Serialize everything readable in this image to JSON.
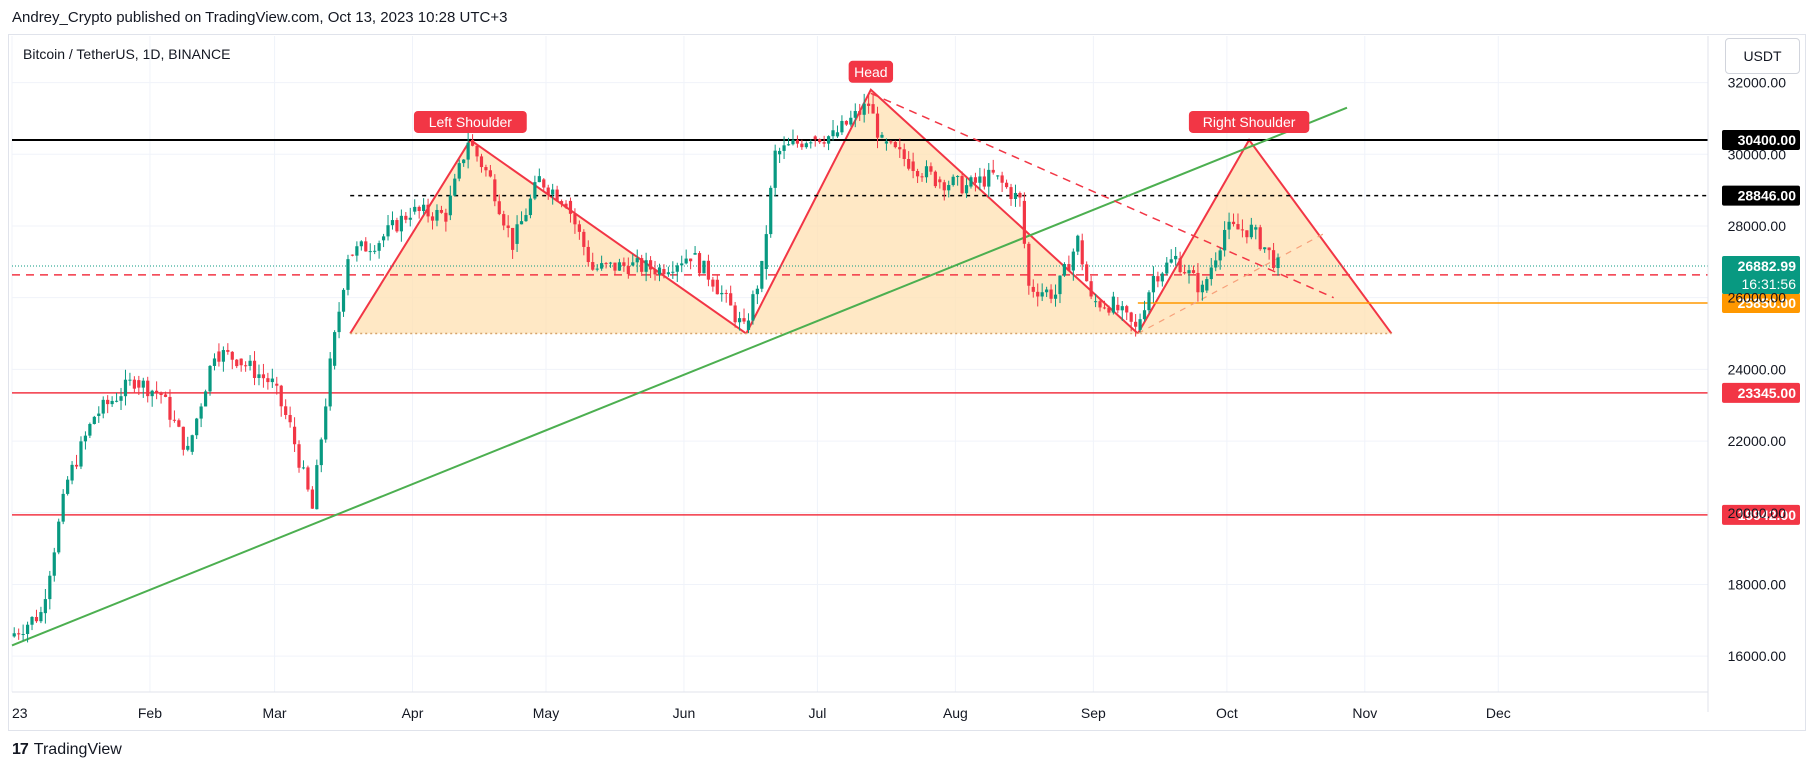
{
  "header": {
    "published": "Andrey_Crypto published on TradingView.com, Oct 13, 2023 10:28 UTC+3"
  },
  "symbol": {
    "label": "Bitcoin / TetherUS, 1D, BINANCE"
  },
  "currency_button": {
    "label": "USDT"
  },
  "footer": {
    "brand": "TradingView",
    "logo": "17"
  },
  "chart_data": {
    "type": "candlestick",
    "title": "",
    "y_ticks": [
      16000,
      18000,
      20000,
      22000,
      24000,
      26000,
      28000,
      30000,
      32000
    ],
    "ylim": [
      15000,
      33300
    ],
    "x_ticks": [
      "23",
      "Feb",
      "Mar",
      "Apr",
      "May",
      "Jun",
      "Jul",
      "Aug",
      "Sep",
      "Oct",
      "Nov",
      "Dec"
    ],
    "price_levels": [
      {
        "value": 30400,
        "label": "30400.00",
        "color": "#000000",
        "style": "solid"
      },
      {
        "value": 28846,
        "label": "28846.00",
        "color": "#000000",
        "style": "dashed"
      },
      {
        "value": 26636,
        "label": "26636.00",
        "color": "#f23645",
        "style": "dashed"
      },
      {
        "value": 25850,
        "label": "25850.00",
        "color": "#ff9800",
        "style": "solid"
      },
      {
        "value": 23345,
        "label": "23345.00",
        "color": "#f23645",
        "style": "solid"
      },
      {
        "value": 19942,
        "label": "19942.00",
        "color": "#f23645",
        "style": "solid"
      }
    ],
    "current_price": {
      "value": 26882.99,
      "label": "26882.99",
      "countdown": "16:31:56",
      "color": "#089981"
    },
    "pattern_labels": [
      "Left Shoulder",
      "Head",
      "Right Shoulder"
    ],
    "pattern_neckline": 25000,
    "colors": {
      "up": "#089981",
      "down": "#f23645",
      "trend": "#4caf50",
      "fill": "#ffe0b2"
    },
    "series": [
      {
        "date": "2023-01-01",
        "close": 16550
      },
      {
        "date": "2023-01-08",
        "close": 17200
      },
      {
        "date": "2023-01-14",
        "close": 20900
      },
      {
        "date": "2023-01-20",
        "close": 22700
      },
      {
        "date": "2023-01-29",
        "close": 23700
      },
      {
        "date": "2023-02-04",
        "close": 23300
      },
      {
        "date": "2023-02-10",
        "close": 21700
      },
      {
        "date": "2023-02-16",
        "close": 24500
      },
      {
        "date": "2023-02-21",
        "close": 24300
      },
      {
        "date": "2023-03-01",
        "close": 23600
      },
      {
        "date": "2023-03-05",
        "close": 22400
      },
      {
        "date": "2023-03-10",
        "close": 20100
      },
      {
        "date": "2023-03-14",
        "close": 24100
      },
      {
        "date": "2023-03-18",
        "close": 27200
      },
      {
        "date": "2023-03-25",
        "close": 27600
      },
      {
        "date": "2023-04-01",
        "close": 28400
      },
      {
        "date": "2023-04-09",
        "close": 28300
      },
      {
        "date": "2023-04-14",
        "close": 30400
      },
      {
        "date": "2023-04-19",
        "close": 29300
      },
      {
        "date": "2023-04-24",
        "close": 27500
      },
      {
        "date": "2023-04-30",
        "close": 29300
      },
      {
        "date": "2023-05-06",
        "close": 28700
      },
      {
        "date": "2023-05-12",
        "close": 26800
      },
      {
        "date": "2023-05-20",
        "close": 26900
      },
      {
        "date": "2023-05-27",
        "close": 26800
      },
      {
        "date": "2023-06-03",
        "close": 27200
      },
      {
        "date": "2023-06-08",
        "close": 26500
      },
      {
        "date": "2023-06-15",
        "close": 25100
      },
      {
        "date": "2023-06-19",
        "close": 26800
      },
      {
        "date": "2023-06-22",
        "close": 30000
      },
      {
        "date": "2023-06-30",
        "close": 30500
      },
      {
        "date": "2023-07-05",
        "close": 30500
      },
      {
        "date": "2023-07-13",
        "close": 31400
      },
      {
        "date": "2023-07-16",
        "close": 30300
      },
      {
        "date": "2023-07-22",
        "close": 29800
      },
      {
        "date": "2023-07-28",
        "close": 29300
      },
      {
        "date": "2023-08-04",
        "close": 29100
      },
      {
        "date": "2023-08-10",
        "close": 29400
      },
      {
        "date": "2023-08-16",
        "close": 28700
      },
      {
        "date": "2023-08-18",
        "close": 26300
      },
      {
        "date": "2023-08-24",
        "close": 26100
      },
      {
        "date": "2023-08-29",
        "close": 27600
      },
      {
        "date": "2023-09-01",
        "close": 25900
      },
      {
        "date": "2023-09-06",
        "close": 25800
      },
      {
        "date": "2023-09-11",
        "close": 25100
      },
      {
        "date": "2023-09-15",
        "close": 26600
      },
      {
        "date": "2023-09-20",
        "close": 27100
      },
      {
        "date": "2023-09-26",
        "close": 26200
      },
      {
        "date": "2023-10-01",
        "close": 27900
      },
      {
        "date": "2023-10-07",
        "close": 27900
      },
      {
        "date": "2023-10-10",
        "close": 27400
      },
      {
        "date": "2023-10-13",
        "close": 26883
      }
    ]
  }
}
